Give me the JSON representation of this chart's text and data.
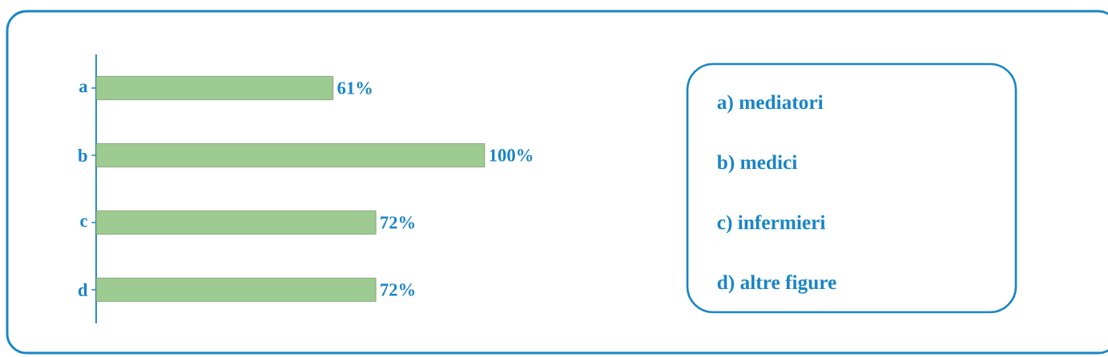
{
  "chart_data": {
    "type": "bar",
    "orientation": "horizontal",
    "categories": [
      "a",
      "b",
      "c",
      "d"
    ],
    "values": [
      61,
      100,
      72,
      72
    ],
    "color": "#9dcb91",
    "value_labels": [
      "61%",
      "100%",
      "72%",
      "72%"
    ],
    "annotations": [
      "a)  mediatori",
      "b)  medici",
      "c)  infermieri",
      "d)  altre figure"
    ]
  }
}
